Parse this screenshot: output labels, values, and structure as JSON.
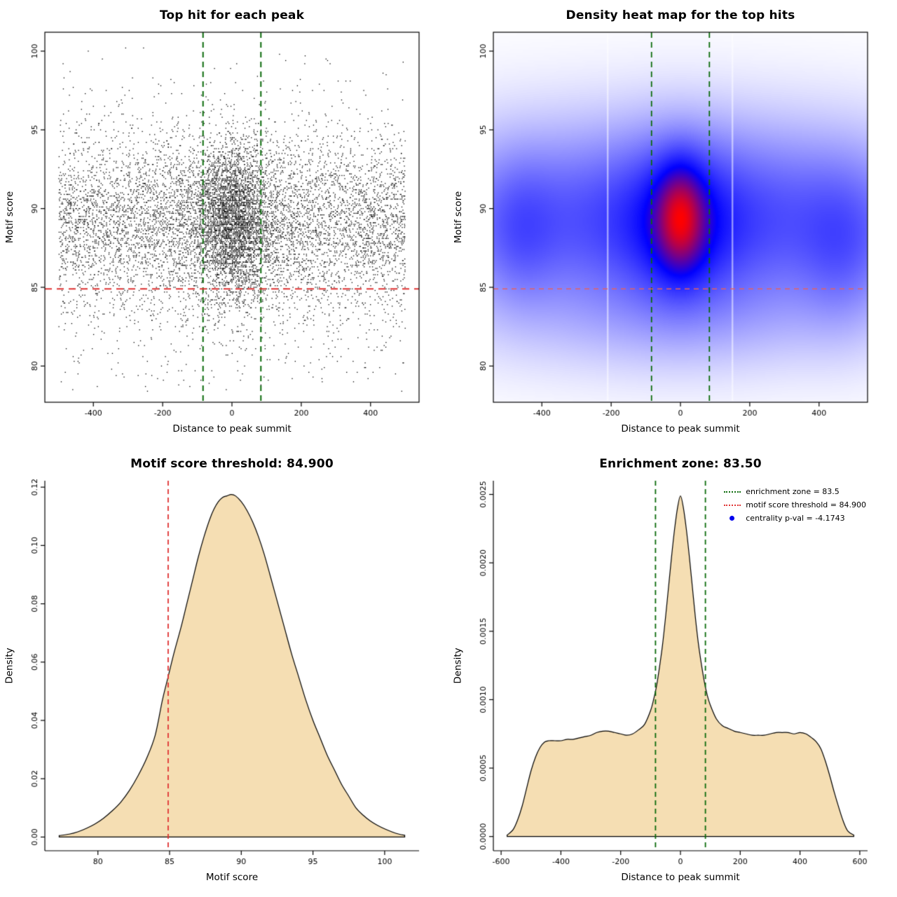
{
  "figure": {
    "background": "#ffffff"
  },
  "colors": {
    "threshold_red": "#e03333",
    "zone_green": "#0b6b0b",
    "fill_wheat": "#f5deb3",
    "heat_low": "#ffffff",
    "heat_mid": "#0000ff",
    "heat_high": "#ff0000",
    "point_black": "#000000",
    "legend_blue": "#0000ee"
  },
  "chart_data": [
    {
      "type": "scatter",
      "title": "Top hit for each peak",
      "xlabel": "Distance to peak summit",
      "ylabel": "Motif score",
      "xlim": [
        -540,
        540
      ],
      "ylim": [
        77.7,
        101.2
      ],
      "xticks": {
        "values": [
          -400,
          -200,
          0,
          200,
          400
        ],
        "labels": [
          "-400",
          "-200",
          "0",
          "200",
          "400"
        ]
      },
      "yticks": {
        "values": [
          80,
          85,
          90,
          95,
          100
        ],
        "labels": [
          "80",
          "85",
          "90",
          "95",
          "100"
        ]
      },
      "frame": "box",
      "point_color": "#000000",
      "point_size": 1.3,
      "seed": 42,
      "clip_x": [
        -500,
        500
      ],
      "clip_y": [
        78.4,
        100.3
      ],
      "y_quantize": 0.1,
      "components": [
        {
          "n": 5200,
          "x": {
            "dist": "uniform",
            "min": -500,
            "max": 500
          },
          "y": {
            "dist": "normal",
            "mean": 89.3,
            "sd": 2.6
          }
        },
        {
          "n": 1700,
          "x": {
            "dist": "uniform",
            "min": -500,
            "max": 500
          },
          "y": {
            "dist": "normal",
            "mean": 88.0,
            "sd": 5.2
          }
        },
        {
          "n": 2600,
          "x": {
            "dist": "normal",
            "mean": 0,
            "sd": 52
          },
          "y": {
            "dist": "normal",
            "mean": 89.2,
            "sd": 2.3
          }
        },
        {
          "n": 900,
          "x": {
            "dist": "normal",
            "mean": 0,
            "sd": 115
          },
          "y": {
            "dist": "normal",
            "mean": 89.0,
            "sd": 3.0
          }
        }
      ],
      "hlines": [
        {
          "pos": 84.9,
          "color": "#e03333",
          "width": 2,
          "dash": [
            10,
            7
          ]
        }
      ],
      "vlines": [
        {
          "pos": -83.5,
          "color": "#0b6b0b",
          "width": 2,
          "dash": [
            8,
            6
          ]
        },
        {
          "pos": 83.5,
          "color": "#0b6b0b",
          "width": 2,
          "dash": [
            8,
            6
          ]
        }
      ]
    },
    {
      "type": "heatmap",
      "title": "Density heat map for the top hits",
      "xlabel": "Distance to peak summit",
      "ylabel": "Motif score",
      "xlim": [
        -540,
        540
      ],
      "ylim": [
        77.7,
        101.2
      ],
      "xticks": {
        "values": [
          -400,
          -200,
          0,
          200,
          400
        ],
        "labels": [
          "-400",
          "-200",
          "0",
          "200",
          "400"
        ]
      },
      "yticks": {
        "values": [
          80,
          85,
          90,
          95,
          100
        ],
        "labels": [
          "80",
          "85",
          "90",
          "95",
          "100"
        ]
      },
      "frame": "box",
      "colormap": {
        "low": "#ffffff",
        "mid": "#0000ff",
        "high": "#ff0000"
      },
      "gamma": 0.55,
      "mid_point": 0.62,
      "grid": [
        178,
        176
      ],
      "components": [
        {
          "w": 0.55,
          "mx": 0,
          "sx": 420,
          "my": 89.3,
          "sy": 3.3
        },
        {
          "w": 0.2,
          "mx": -460,
          "sx": 70,
          "my": 88.6,
          "sy": 2.8
        },
        {
          "w": 0.22,
          "mx": 465,
          "sx": 80,
          "my": 87.6,
          "sy": 3.0
        },
        {
          "w": 0.5,
          "mx": 0,
          "sx": 95,
          "my": 89.0,
          "sy": 3.0
        },
        {
          "w": 1.0,
          "mx": 0,
          "sx": 44,
          "my": 89.4,
          "sy": 2.1
        },
        {
          "w": 0.1,
          "mx": 0,
          "sx": 320,
          "my": 83.5,
          "sy": 2.2
        }
      ],
      "white_streaks": [
        -210,
        150
      ],
      "hlines": [
        {
          "pos": 84.9,
          "color": "#e56060",
          "width": 1.6,
          "dash": [
            7,
            6
          ]
        }
      ],
      "vlines": [
        {
          "pos": -83.5,
          "color": "#0b6b0b",
          "width": 1.8,
          "dash": [
            8,
            6
          ]
        },
        {
          "pos": 83.5,
          "color": "#0b6b0b",
          "width": 1.8,
          "dash": [
            8,
            6
          ]
        }
      ]
    },
    {
      "type": "area",
      "title": "Motif score threshold: 84.900",
      "xlabel": "Motif score",
      "ylabel": "Density",
      "xlim": [
        76.3,
        102.4
      ],
      "ylim": [
        -0.0047,
        0.1222
      ],
      "xticks": {
        "values": [
          80,
          85,
          90,
          95,
          100
        ],
        "labels": [
          "80",
          "85",
          "90",
          "95",
          "100"
        ]
      },
      "yticks": {
        "values": [
          0,
          0.02,
          0.04,
          0.06,
          0.08,
          0.1,
          0.12
        ],
        "labels": [
          "0.00",
          "0.02",
          "0.04",
          "0.06",
          "0.08",
          "0.10",
          "0.12"
        ]
      },
      "frame": "axes",
      "fill_color": "#f5deb3",
      "line_color": "#000000",
      "curve": {
        "x": [
          77.3,
          78.0,
          78.6,
          79.2,
          79.8,
          80.4,
          81.0,
          81.6,
          82.2,
          82.8,
          83.4,
          84.0,
          84.5,
          84.9,
          85.3,
          85.8,
          86.2,
          86.6,
          87.0,
          87.4,
          87.8,
          88.1,
          88.4,
          88.7,
          89.0,
          89.3,
          89.6,
          90.0,
          90.4,
          90.8,
          91.2,
          91.6,
          92.0,
          92.5,
          93.0,
          93.5,
          94.0,
          94.5,
          95.0,
          95.5,
          96.0,
          96.5,
          97.0,
          97.5,
          98.0,
          98.5,
          99.0,
          99.5,
          100.0,
          100.5,
          101.0,
          101.4
        ],
        "y": [
          0.0005,
          0.001,
          0.0018,
          0.003,
          0.0045,
          0.0065,
          0.009,
          0.012,
          0.016,
          0.021,
          0.027,
          0.035,
          0.047,
          0.055,
          0.063,
          0.072,
          0.08,
          0.088,
          0.096,
          0.103,
          0.109,
          0.1125,
          0.115,
          0.1165,
          0.117,
          0.1175,
          0.117,
          0.115,
          0.112,
          0.108,
          0.103,
          0.097,
          0.09,
          0.081,
          0.072,
          0.063,
          0.055,
          0.047,
          0.04,
          0.034,
          0.028,
          0.023,
          0.018,
          0.014,
          0.01,
          0.0075,
          0.0055,
          0.004,
          0.0028,
          0.0018,
          0.001,
          0.0006
        ]
      },
      "hlines": [],
      "vlines": [
        {
          "pos": 84.9,
          "color": "#e03333",
          "width": 1.8,
          "dash": [
            7,
            5
          ]
        }
      ]
    },
    {
      "type": "area",
      "title": "Enrichment zone: 83.50",
      "xlabel": "Distance to peak summit",
      "ylabel": "Density",
      "xlim": [
        -626,
        626
      ],
      "ylim": [
        -0.000104,
        0.0026
      ],
      "xticks": {
        "values": [
          -600,
          -400,
          -200,
          0,
          200,
          400,
          600
        ],
        "labels": [
          "-600",
          "-400",
          "-200",
          "0",
          "200",
          "400",
          "600"
        ]
      },
      "yticks": {
        "values": [
          0,
          0.0005,
          0.001,
          0.0015,
          0.002,
          0.0025
        ],
        "labels": [
          "0.0000",
          "0.0005",
          "0.0010",
          "0.0015",
          "0.0020",
          "0.0025"
        ]
      },
      "frame": "axes",
      "fill_color": "#f5deb3",
      "line_color": "#000000",
      "curve": {
        "x": [
          -580,
          -560,
          -545,
          -530,
          -515,
          -500,
          -485,
          -470,
          -455,
          -440,
          -420,
          -400,
          -380,
          -360,
          -340,
          -320,
          -300,
          -280,
          -260,
          -240,
          -220,
          -200,
          -180,
          -160,
          -140,
          -120,
          -100,
          -90,
          -80,
          -70,
          -60,
          -50,
          -40,
          -30,
          -20,
          -10,
          0,
          10,
          20,
          30,
          40,
          50,
          60,
          70,
          80,
          90,
          100,
          120,
          140,
          160,
          180,
          200,
          220,
          240,
          260,
          280,
          300,
          320,
          340,
          360,
          380,
          400,
          420,
          440,
          455,
          470,
          485,
          500,
          515,
          530,
          545,
          560,
          580
        ],
        "y": [
          1e-05,
          5e-05,
          0.00012,
          0.00022,
          0.00035,
          0.00048,
          0.00058,
          0.00065,
          0.00069,
          0.0007,
          0.0007,
          0.0007,
          0.00071,
          0.00071,
          0.00072,
          0.00073,
          0.00074,
          0.00076,
          0.00077,
          0.00077,
          0.00076,
          0.00075,
          0.00074,
          0.00075,
          0.00078,
          0.00082,
          0.00092,
          0.001,
          0.0011,
          0.00124,
          0.0014,
          0.0016,
          0.00182,
          0.00204,
          0.00224,
          0.0024,
          0.00249,
          0.0024,
          0.00224,
          0.00204,
          0.00182,
          0.0016,
          0.00141,
          0.00126,
          0.00113,
          0.00103,
          0.00096,
          0.00086,
          0.00081,
          0.00079,
          0.00077,
          0.00076,
          0.00075,
          0.00074,
          0.00074,
          0.00074,
          0.00075,
          0.00076,
          0.00076,
          0.00076,
          0.00075,
          0.00076,
          0.00075,
          0.00072,
          0.00069,
          0.00064,
          0.00055,
          0.00044,
          0.00032,
          0.00021,
          0.00011,
          4e-05,
          1e-05
        ]
      },
      "hlines": [],
      "vlines": [
        {
          "pos": -83.5,
          "color": "#0b6b0b",
          "width": 1.8,
          "dash": [
            7,
            5
          ]
        },
        {
          "pos": 83.5,
          "color": "#0b6b0b",
          "width": 1.8,
          "dash": [
            7,
            5
          ]
        }
      ],
      "legend": {
        "items": [
          {
            "label": "enrichment zone = 83.5",
            "color": "#0b6b0b",
            "type": "dotted-line"
          },
          {
            "label": "motif score threshold = 84.900",
            "color": "#e03333",
            "type": "dotted-line"
          },
          {
            "label": "centrality p-val = -4.1743",
            "color": "#0000ee",
            "type": "point"
          }
        ]
      }
    }
  ]
}
